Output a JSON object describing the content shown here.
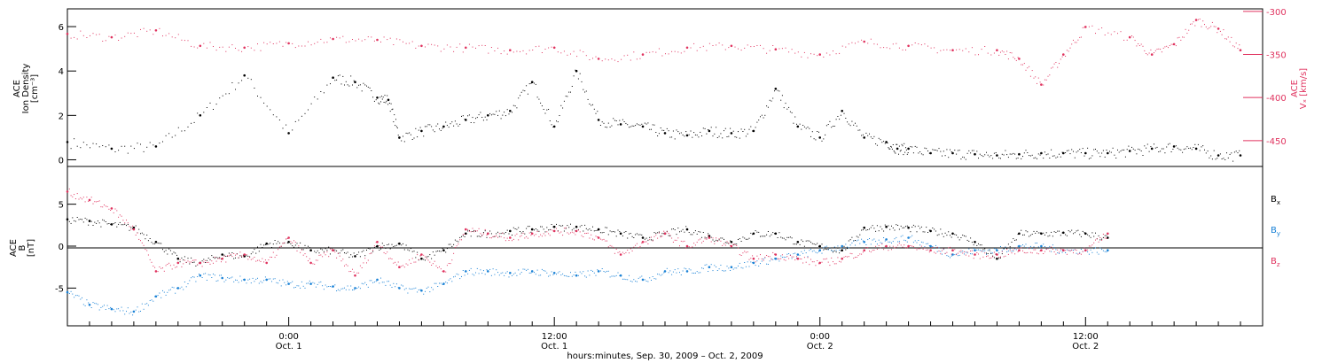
{
  "chart_data": [
    {
      "type": "scatter",
      "panel": "top",
      "ylabel": [
        "ACE",
        "Ion Density",
        "[cm⁻³]"
      ],
      "ylim": [
        -0.3,
        6.8
      ],
      "yticks": [
        0,
        2,
        4,
        6
      ],
      "y2label": [
        "ACE",
        "Vₓ [km/s]"
      ],
      "y2lim": [
        -480,
        -297
      ],
      "y2ticks": [
        -300,
        -350,
        -400,
        -450
      ],
      "y2color": "#e0335f",
      "series": [
        {
          "color": "#000000",
          "axis": "left",
          "x": [
            0,
            2,
            4,
            6,
            8,
            10,
            12,
            13,
            14,
            14.5,
            15,
            16,
            17,
            18,
            19,
            20,
            21,
            22,
            23,
            24,
            25,
            26,
            27,
            28,
            29,
            30,
            31,
            32,
            33,
            34,
            35,
            36,
            37,
            37.5,
            38,
            39,
            40,
            41,
            42,
            43,
            44,
            45,
            46,
            47,
            48,
            49,
            50,
            51,
            52,
            53
          ],
          "y": [
            0.8,
            0.5,
            0.6,
            2.0,
            3.8,
            1.2,
            3.7,
            3.5,
            2.8,
            2.7,
            1.0,
            1.3,
            1.5,
            1.8,
            2.0,
            2.2,
            3.5,
            1.5,
            4.0,
            1.8,
            1.6,
            1.5,
            1.2,
            1.1,
            1.3,
            1.2,
            1.3,
            3.2,
            1.5,
            1.0,
            2.2,
            1.0,
            0.8,
            0.5,
            0.5,
            0.3,
            0.3,
            0.25,
            0.2,
            0.25,
            0.3,
            0.3,
            0.3,
            0.3,
            0.4,
            0.5,
            0.6,
            0.5,
            0.2,
            0.2
          ]
        },
        {
          "color": "#e0335f",
          "axis": "right",
          "x": [
            0,
            2,
            4,
            6,
            8,
            10,
            12,
            14,
            16,
            18,
            20,
            22,
            24,
            26,
            28,
            30,
            32,
            34,
            36,
            38,
            40,
            42,
            43,
            44,
            45,
            46,
            48,
            49,
            50,
            51,
            52,
            53
          ],
          "y": [
            -326,
            -330,
            -322,
            -340,
            -342,
            -337,
            -332,
            -333,
            -340,
            -342,
            -345,
            -342,
            -355,
            -350,
            -342,
            -340,
            -344,
            -350,
            -335,
            -340,
            -345,
            -345,
            -355,
            -385,
            -350,
            -318,
            -330,
            -350,
            -338,
            -310,
            -320,
            -345
          ]
        }
      ]
    },
    {
      "type": "scatter",
      "panel": "bottom",
      "ylabel": [
        "ACE",
        "B",
        "[nT]"
      ],
      "ylim": [
        -9.5,
        9.5
      ],
      "yticks": [
        -5,
        0,
        5
      ],
      "xlabel": "hours:minutes, Sep. 30, 2009 – Oct. 2, 2009",
      "xticks": [
        {
          "hours": 10,
          "time": "0:00",
          "date": "Oct. 1"
        },
        {
          "hours": 22,
          "time": "12:00",
          "date": "Oct. 1"
        },
        {
          "hours": 34,
          "time": "0:00",
          "date": "Oct. 2"
        },
        {
          "hours": 46,
          "time": "12:00",
          "date": "Oct. 2"
        }
      ],
      "xlim": [
        0,
        54
      ],
      "series": [
        {
          "name": "Bx",
          "color": "#000000",
          "x": [
            0,
            1,
            2,
            3,
            4,
            5,
            6,
            7,
            8,
            9,
            10,
            11,
            12,
            13,
            14,
            15,
            16,
            17,
            18,
            19,
            20,
            21,
            22,
            23,
            24,
            25,
            26,
            27,
            28,
            29,
            30,
            31,
            32,
            33,
            34,
            35,
            36,
            37,
            38,
            39,
            40,
            41,
            42,
            43,
            44,
            45,
            46,
            47
          ],
          "y": [
            3.2,
            3.0,
            2.6,
            2.2,
            0.5,
            -1.5,
            -2.0,
            -1.0,
            -1.2,
            0.3,
            0.5,
            -0.5,
            -0.5,
            -1.2,
            0.0,
            0.3,
            -1.5,
            -0.5,
            1.5,
            1.5,
            1.8,
            2.0,
            2.3,
            2.3,
            2.0,
            1.5,
            1.0,
            1.5,
            2.0,
            1.2,
            0.5,
            1.5,
            1.5,
            0.5,
            0.0,
            -0.5,
            2.2,
            2.3,
            2.2,
            1.8,
            1.5,
            0.5,
            -1.5,
            1.5,
            1.5,
            1.6,
            1.5,
            1.0
          ]
        },
        {
          "name": "By",
          "color": "#1a82d6",
          "x": [
            0,
            1,
            2,
            3,
            4,
            5,
            6,
            7,
            8,
            9,
            10,
            11,
            12,
            13,
            14,
            15,
            16,
            17,
            18,
            19,
            20,
            21,
            22,
            23,
            24,
            25,
            26,
            27,
            28,
            29,
            30,
            31,
            32,
            33,
            34,
            35,
            36,
            37,
            38,
            39,
            40,
            41,
            42,
            43,
            44,
            45,
            46,
            47
          ],
          "y": [
            -5.5,
            -7.0,
            -7.5,
            -7.8,
            -6.0,
            -5.0,
            -3.5,
            -3.8,
            -4.0,
            -4.0,
            -4.5,
            -4.5,
            -4.8,
            -5.0,
            -4.0,
            -5.0,
            -5.3,
            -4.5,
            -3.0,
            -3.0,
            -3.2,
            -3.0,
            -3.2,
            -3.5,
            -3.0,
            -3.5,
            -4.0,
            -3.0,
            -3.0,
            -2.5,
            -2.5,
            -2.0,
            -1.5,
            -1.0,
            -0.5,
            0.0,
            0.5,
            0.8,
            1.0,
            0.0,
            -1.0,
            -0.5,
            -0.5,
            0.0,
            0.0,
            -0.5,
            -0.5,
            -0.5
          ]
        },
        {
          "name": "Bz",
          "color": "#e0335f",
          "x": [
            0,
            1,
            2,
            3,
            4,
            5,
            6,
            7,
            8,
            9,
            10,
            11,
            12,
            13,
            14,
            15,
            16,
            17,
            18,
            19,
            20,
            21,
            22,
            23,
            24,
            25,
            26,
            27,
            28,
            29,
            30,
            31,
            32,
            33,
            34,
            35,
            36,
            37,
            38,
            39,
            40,
            41,
            42,
            43,
            44,
            45,
            46,
            47
          ],
          "y": [
            6.5,
            5.5,
            4.5,
            2.0,
            -3.0,
            -2.0,
            -2.0,
            -1.5,
            -1.0,
            -2.0,
            1.0,
            -2.0,
            -0.5,
            -3.5,
            0.5,
            -2.5,
            -1.0,
            -3.0,
            2.0,
            1.5,
            1.0,
            1.5,
            1.8,
            1.8,
            1.0,
            -1.0,
            0.5,
            1.5,
            0.0,
            1.0,
            0.0,
            -1.5,
            -1.0,
            -1.5,
            -2.0,
            -1.5,
            -0.5,
            0.0,
            0.0,
            -0.5,
            -0.5,
            -1.0,
            -1.0,
            -0.5,
            -0.5,
            -0.5,
            -0.5,
            1.5
          ]
        }
      ],
      "legend": {
        "placement": "right",
        "entries": [
          "Bx",
          "By",
          "Bz"
        ]
      }
    }
  ]
}
